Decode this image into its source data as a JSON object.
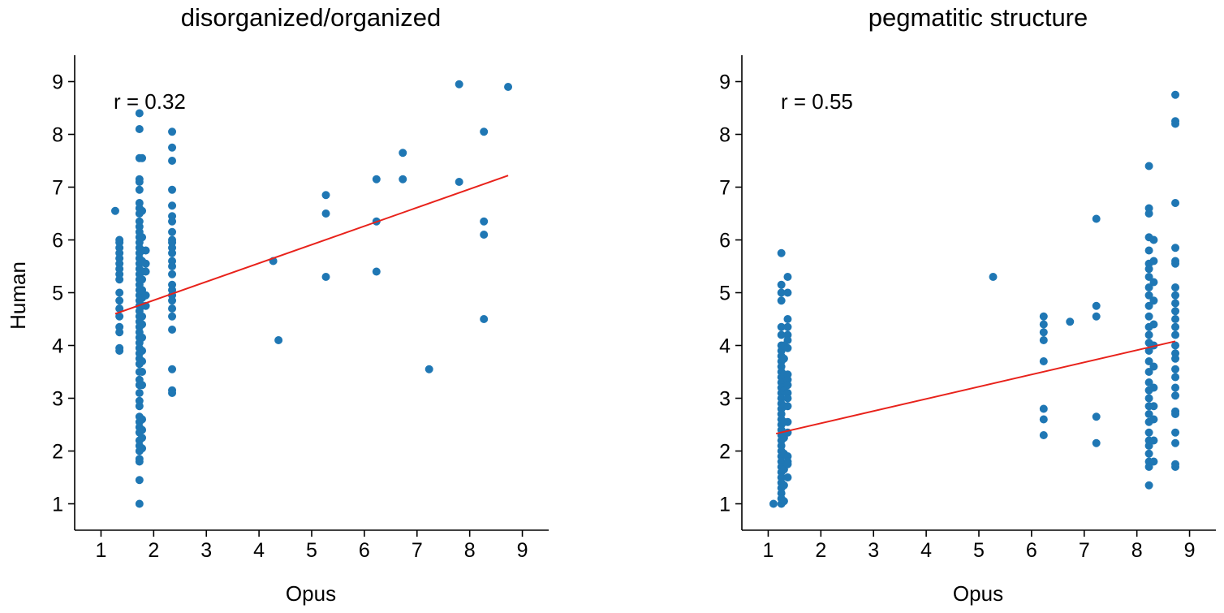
{
  "colors": {
    "points": "#1f77b4",
    "fit_line": "#e8221b"
  },
  "chart_data": [
    {
      "type": "scatter",
      "title": "disorganized/organized",
      "xlabel": "Opus",
      "ylabel": "Human",
      "annotation": "r = 0.32",
      "xlim": [
        0.5,
        9.5
      ],
      "ylim": [
        0.5,
        9.5
      ],
      "xticks": [
        "1",
        "2",
        "3",
        "4",
        "5",
        "6",
        "7",
        "8",
        "9"
      ],
      "yticks": [
        "1",
        "2",
        "3",
        "4",
        "5",
        "6",
        "7",
        "8",
        "9"
      ],
      "fit_line": {
        "x": [
          1.27,
          8.73
        ],
        "y": [
          4.6,
          7.22
        ]
      },
      "points": [
        [
          1.27,
          6.55
        ],
        [
          1.35,
          6.0
        ],
        [
          1.35,
          5.95
        ],
        [
          1.35,
          5.85
        ],
        [
          1.35,
          5.75
        ],
        [
          1.35,
          5.65
        ],
        [
          1.35,
          5.55
        ],
        [
          1.35,
          5.45
        ],
        [
          1.35,
          5.35
        ],
        [
          1.35,
          5.25
        ],
        [
          1.35,
          5.0
        ],
        [
          1.35,
          4.85
        ],
        [
          1.35,
          4.7
        ],
        [
          1.35,
          4.55
        ],
        [
          1.35,
          4.35
        ],
        [
          1.35,
          4.25
        ],
        [
          1.35,
          3.95
        ],
        [
          1.35,
          3.9
        ],
        [
          1.73,
          8.4
        ],
        [
          1.73,
          8.1
        ],
        [
          1.73,
          7.55
        ],
        [
          1.73,
          7.15
        ],
        [
          1.73,
          7.1
        ],
        [
          1.73,
          6.95
        ],
        [
          1.73,
          6.7
        ],
        [
          1.73,
          6.6
        ],
        [
          1.73,
          6.5
        ],
        [
          1.73,
          6.35
        ],
        [
          1.73,
          6.25
        ],
        [
          1.73,
          6.15
        ],
        [
          1.73,
          6.05
        ],
        [
          1.73,
          5.95
        ],
        [
          1.73,
          5.85
        ],
        [
          1.73,
          5.75
        ],
        [
          1.73,
          5.65
        ],
        [
          1.73,
          5.55
        ],
        [
          1.73,
          5.45
        ],
        [
          1.73,
          5.35
        ],
        [
          1.73,
          5.25
        ],
        [
          1.73,
          5.15
        ],
        [
          1.73,
          5.05
        ],
        [
          1.73,
          4.95
        ],
        [
          1.73,
          4.85
        ],
        [
          1.73,
          4.75
        ],
        [
          1.73,
          4.65
        ],
        [
          1.73,
          4.55
        ],
        [
          1.73,
          4.45
        ],
        [
          1.73,
          4.35
        ],
        [
          1.73,
          4.25
        ],
        [
          1.73,
          4.15
        ],
        [
          1.73,
          4.05
        ],
        [
          1.73,
          3.95
        ],
        [
          1.73,
          3.85
        ],
        [
          1.73,
          3.75
        ],
        [
          1.73,
          3.65
        ],
        [
          1.73,
          3.5
        ],
        [
          1.73,
          3.35
        ],
        [
          1.73,
          3.25
        ],
        [
          1.73,
          3.1
        ],
        [
          1.73,
          2.95
        ],
        [
          1.73,
          2.85
        ],
        [
          1.73,
          2.65
        ],
        [
          1.73,
          2.55
        ],
        [
          1.73,
          2.45
        ],
        [
          1.73,
          2.35
        ],
        [
          1.73,
          2.2
        ],
        [
          1.73,
          2.1
        ],
        [
          1.73,
          2.0
        ],
        [
          1.73,
          1.85
        ],
        [
          1.73,
          1.8
        ],
        [
          1.73,
          1.45
        ],
        [
          1.73,
          1.0
        ],
        [
          1.78,
          7.55
        ],
        [
          1.78,
          6.55
        ],
        [
          1.78,
          6.05
        ],
        [
          1.78,
          5.8
        ],
        [
          1.78,
          5.6
        ],
        [
          1.78,
          5.4
        ],
        [
          1.78,
          5.25
        ],
        [
          1.78,
          5.05
        ],
        [
          1.78,
          4.9
        ],
        [
          1.78,
          4.75
        ],
        [
          1.78,
          4.55
        ],
        [
          1.78,
          4.4
        ],
        [
          1.78,
          4.15
        ],
        [
          1.78,
          3.9
        ],
        [
          1.78,
          3.7
        ],
        [
          1.78,
          3.5
        ],
        [
          1.78,
          3.25
        ],
        [
          1.78,
          2.6
        ],
        [
          1.78,
          2.4
        ],
        [
          1.78,
          2.25
        ],
        [
          1.78,
          2.05
        ],
        [
          1.85,
          5.8
        ],
        [
          1.85,
          5.55
        ],
        [
          1.85,
          5.4
        ],
        [
          1.85,
          4.95
        ],
        [
          1.85,
          4.75
        ],
        [
          2.35,
          8.05
        ],
        [
          2.35,
          7.75
        ],
        [
          2.35,
          7.5
        ],
        [
          2.35,
          6.95
        ],
        [
          2.35,
          6.65
        ],
        [
          2.35,
          6.45
        ],
        [
          2.35,
          6.35
        ],
        [
          2.35,
          6.15
        ],
        [
          2.35,
          6.0
        ],
        [
          2.35,
          5.95
        ],
        [
          2.35,
          5.85
        ],
        [
          2.35,
          5.75
        ],
        [
          2.35,
          5.6
        ],
        [
          2.35,
          5.5
        ],
        [
          2.35,
          5.35
        ],
        [
          2.35,
          5.15
        ],
        [
          2.35,
          5.05
        ],
        [
          2.35,
          4.95
        ],
        [
          2.35,
          4.85
        ],
        [
          2.35,
          4.7
        ],
        [
          2.35,
          4.55
        ],
        [
          2.35,
          4.3
        ],
        [
          2.35,
          3.55
        ],
        [
          2.35,
          3.15
        ],
        [
          2.35,
          3.1
        ],
        [
          4.27,
          5.6
        ],
        [
          4.37,
          4.1
        ],
        [
          5.27,
          6.85
        ],
        [
          5.27,
          6.5
        ],
        [
          5.27,
          5.3
        ],
        [
          6.23,
          7.15
        ],
        [
          6.23,
          6.35
        ],
        [
          6.23,
          5.4
        ],
        [
          6.73,
          7.65
        ],
        [
          6.73,
          7.15
        ],
        [
          7.23,
          3.55
        ],
        [
          7.8,
          8.95
        ],
        [
          7.8,
          7.1
        ],
        [
          8.27,
          8.05
        ],
        [
          8.27,
          6.35
        ],
        [
          8.27,
          6.1
        ],
        [
          8.27,
          4.5
        ],
        [
          8.73,
          8.9
        ]
      ]
    },
    {
      "type": "scatter",
      "title": "pegmatitic structure",
      "xlabel": "Opus",
      "ylabel": "",
      "annotation": "r = 0.55",
      "xlim": [
        0.5,
        9.5
      ],
      "ylim": [
        0.5,
        9.5
      ],
      "xticks": [
        "1",
        "2",
        "3",
        "4",
        "5",
        "6",
        "7",
        "8",
        "9"
      ],
      "yticks": [
        "1",
        "2",
        "3",
        "4",
        "5",
        "6",
        "7",
        "8",
        "9"
      ],
      "fit_line": {
        "x": [
          1.15,
          8.73
        ],
        "y": [
          2.33,
          4.08
        ]
      },
      "points": [
        [
          1.1,
          1.0
        ],
        [
          1.25,
          1.0
        ],
        [
          1.25,
          5.75
        ],
        [
          1.25,
          5.15
        ],
        [
          1.25,
          5.0
        ],
        [
          1.25,
          4.85
        ],
        [
          1.25,
          4.35
        ],
        [
          1.25,
          4.2
        ],
        [
          1.25,
          4.0
        ],
        [
          1.25,
          3.9
        ],
        [
          1.25,
          3.8
        ],
        [
          1.25,
          3.7
        ],
        [
          1.25,
          3.6
        ],
        [
          1.25,
          3.5
        ],
        [
          1.25,
          3.4
        ],
        [
          1.25,
          3.3
        ],
        [
          1.25,
          3.2
        ],
        [
          1.25,
          3.1
        ],
        [
          1.25,
          3.0
        ],
        [
          1.25,
          2.9
        ],
        [
          1.25,
          2.8
        ],
        [
          1.25,
          2.7
        ],
        [
          1.25,
          2.6
        ],
        [
          1.25,
          2.5
        ],
        [
          1.25,
          2.4
        ],
        [
          1.25,
          2.3
        ],
        [
          1.25,
          2.2
        ],
        [
          1.25,
          2.1
        ],
        [
          1.25,
          2.0
        ],
        [
          1.25,
          1.9
        ],
        [
          1.25,
          1.8
        ],
        [
          1.25,
          1.7
        ],
        [
          1.25,
          1.6
        ],
        [
          1.25,
          1.5
        ],
        [
          1.25,
          1.4
        ],
        [
          1.25,
          1.3
        ],
        [
          1.25,
          1.2
        ],
        [
          1.25,
          1.1
        ],
        [
          1.3,
          4.0
        ],
        [
          1.3,
          3.75
        ],
        [
          1.3,
          3.45
        ],
        [
          1.3,
          3.15
        ],
        [
          1.3,
          2.85
        ],
        [
          1.3,
          2.55
        ],
        [
          1.3,
          2.25
        ],
        [
          1.3,
          1.95
        ],
        [
          1.3,
          1.65
        ],
        [
          1.3,
          1.35
        ],
        [
          1.3,
          1.05
        ],
        [
          1.37,
          5.3
        ],
        [
          1.37,
          5.0
        ],
        [
          1.37,
          4.5
        ],
        [
          1.37,
          4.35
        ],
        [
          1.37,
          4.2
        ],
        [
          1.37,
          4.1
        ],
        [
          1.37,
          3.95
        ],
        [
          1.37,
          3.45
        ],
        [
          1.37,
          3.35
        ],
        [
          1.37,
          3.25
        ],
        [
          1.37,
          3.1
        ],
        [
          1.37,
          3.0
        ],
        [
          1.37,
          2.85
        ],
        [
          1.37,
          2.55
        ],
        [
          1.37,
          2.35
        ],
        [
          1.37,
          1.9
        ],
        [
          1.37,
          1.8
        ],
        [
          1.37,
          1.75
        ],
        [
          1.37,
          1.5
        ],
        [
          5.27,
          5.3
        ],
        [
          6.23,
          4.55
        ],
        [
          6.23,
          4.4
        ],
        [
          6.23,
          4.25
        ],
        [
          6.23,
          4.1
        ],
        [
          6.23,
          3.7
        ],
        [
          6.23,
          2.8
        ],
        [
          6.23,
          2.6
        ],
        [
          6.23,
          2.3
        ],
        [
          6.73,
          4.45
        ],
        [
          7.23,
          6.4
        ],
        [
          7.23,
          4.75
        ],
        [
          7.23,
          4.55
        ],
        [
          7.23,
          2.65
        ],
        [
          7.23,
          2.15
        ],
        [
          8.23,
          7.4
        ],
        [
          8.23,
          6.6
        ],
        [
          8.23,
          6.5
        ],
        [
          8.23,
          6.05
        ],
        [
          8.23,
          5.8
        ],
        [
          8.23,
          5.55
        ],
        [
          8.23,
          5.45
        ],
        [
          8.23,
          5.3
        ],
        [
          8.23,
          5.1
        ],
        [
          8.23,
          4.95
        ],
        [
          8.23,
          4.75
        ],
        [
          8.23,
          4.55
        ],
        [
          8.23,
          4.35
        ],
        [
          8.23,
          4.2
        ],
        [
          8.23,
          4.05
        ],
        [
          8.23,
          3.9
        ],
        [
          8.23,
          3.7
        ],
        [
          8.23,
          3.5
        ],
        [
          8.23,
          3.3
        ],
        [
          8.23,
          3.15
        ],
        [
          8.23,
          3.0
        ],
        [
          8.23,
          2.85
        ],
        [
          8.23,
          2.7
        ],
        [
          8.23,
          2.55
        ],
        [
          8.23,
          2.35
        ],
        [
          8.23,
          2.2
        ],
        [
          8.23,
          2.1
        ],
        [
          8.23,
          1.95
        ],
        [
          8.23,
          1.8
        ],
        [
          8.23,
          1.7
        ],
        [
          8.23,
          1.35
        ],
        [
          8.32,
          6.0
        ],
        [
          8.32,
          5.6
        ],
        [
          8.32,
          5.2
        ],
        [
          8.32,
          4.85
        ],
        [
          8.32,
          4.4
        ],
        [
          8.32,
          4.0
        ],
        [
          8.32,
          3.6
        ],
        [
          8.32,
          3.2
        ],
        [
          8.32,
          2.85
        ],
        [
          8.32,
          2.6
        ],
        [
          8.32,
          2.2
        ],
        [
          8.32,
          1.8
        ],
        [
          8.73,
          8.75
        ],
        [
          8.73,
          8.25
        ],
        [
          8.73,
          8.2
        ],
        [
          8.73,
          6.7
        ],
        [
          8.73,
          5.85
        ],
        [
          8.73,
          5.6
        ],
        [
          8.73,
          5.55
        ],
        [
          8.73,
          5.1
        ],
        [
          8.73,
          4.95
        ],
        [
          8.73,
          4.8
        ],
        [
          8.73,
          4.65
        ],
        [
          8.73,
          4.5
        ],
        [
          8.73,
          4.35
        ],
        [
          8.73,
          4.2
        ],
        [
          8.73,
          4.0
        ],
        [
          8.73,
          3.85
        ],
        [
          8.73,
          3.75
        ],
        [
          8.73,
          3.55
        ],
        [
          8.73,
          3.4
        ],
        [
          8.73,
          3.2
        ],
        [
          8.73,
          3.05
        ],
        [
          8.73,
          2.75
        ],
        [
          8.73,
          2.7
        ],
        [
          8.73,
          2.35
        ],
        [
          8.73,
          2.15
        ],
        [
          8.73,
          1.75
        ],
        [
          8.73,
          1.7
        ]
      ]
    }
  ]
}
